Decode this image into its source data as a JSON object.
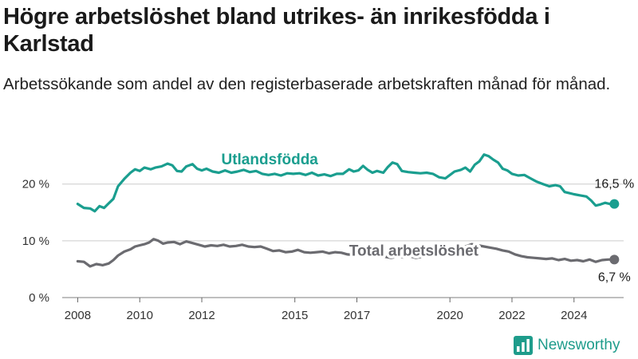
{
  "title": "Högre arbetslöshet bland utrikes- än inrikesfödda i Karlstad",
  "subtitle": "Arbetssökande som andel av den registerbaserade arbetskraften månad för månad.",
  "brand": {
    "name": "Newsworthy",
    "icon": "bar-chart-logo-icon"
  },
  "colors": {
    "foreign": "#1a9e8f",
    "total": "#6b6b70",
    "grid": "#cccccc",
    "text": "#1a1a1a"
  },
  "chart_data": {
    "type": "line",
    "xlabel": "",
    "ylabel": "",
    "xlim": [
      2007.5,
      2025.6
    ],
    "ylim": [
      0,
      26
    ],
    "x_ticks": [
      2008,
      2010,
      2012,
      2015,
      2017,
      2020,
      2022,
      2024
    ],
    "y_ticks": [
      {
        "value": 0,
        "label": "0 %"
      },
      {
        "value": 10,
        "label": "10 %"
      },
      {
        "value": 20,
        "label": "20 %"
      }
    ],
    "grid": "horizontal",
    "series": [
      {
        "name": "Utlandsfödda",
        "end_label": "16,5 %",
        "points": [
          [
            2008.0,
            16.5
          ],
          [
            2008.2,
            15.8
          ],
          [
            2008.4,
            15.7
          ],
          [
            2008.55,
            15.2
          ],
          [
            2008.7,
            16.1
          ],
          [
            2008.85,
            15.8
          ],
          [
            2009.0,
            16.6
          ],
          [
            2009.15,
            17.4
          ],
          [
            2009.3,
            19.6
          ],
          [
            2009.5,
            20.9
          ],
          [
            2009.7,
            22.0
          ],
          [
            2009.85,
            22.6
          ],
          [
            2010.0,
            22.3
          ],
          [
            2010.15,
            22.9
          ],
          [
            2010.35,
            22.6
          ],
          [
            2010.5,
            22.9
          ],
          [
            2010.7,
            23.1
          ],
          [
            2010.9,
            23.6
          ],
          [
            2011.05,
            23.3
          ],
          [
            2011.2,
            22.3
          ],
          [
            2011.35,
            22.2
          ],
          [
            2011.5,
            23.1
          ],
          [
            2011.7,
            23.5
          ],
          [
            2011.85,
            22.7
          ],
          [
            2012.0,
            22.4
          ],
          [
            2012.15,
            22.7
          ],
          [
            2012.35,
            22.2
          ],
          [
            2012.55,
            22.0
          ],
          [
            2012.75,
            22.4
          ],
          [
            2012.95,
            22.0
          ],
          [
            2013.15,
            22.2
          ],
          [
            2013.35,
            22.5
          ],
          [
            2013.55,
            22.1
          ],
          [
            2013.75,
            22.3
          ],
          [
            2013.95,
            21.8
          ],
          [
            2014.15,
            21.6
          ],
          [
            2014.35,
            21.8
          ],
          [
            2014.55,
            21.5
          ],
          [
            2014.75,
            21.9
          ],
          [
            2014.95,
            21.8
          ],
          [
            2015.15,
            21.9
          ],
          [
            2015.35,
            21.6
          ],
          [
            2015.55,
            22.0
          ],
          [
            2015.75,
            21.5
          ],
          [
            2015.95,
            21.7
          ],
          [
            2016.15,
            21.4
          ],
          [
            2016.35,
            21.8
          ],
          [
            2016.55,
            21.8
          ],
          [
            2016.75,
            22.6
          ],
          [
            2016.9,
            22.2
          ],
          [
            2017.05,
            22.4
          ],
          [
            2017.2,
            23.2
          ],
          [
            2017.35,
            22.5
          ],
          [
            2017.5,
            22.0
          ],
          [
            2017.65,
            22.3
          ],
          [
            2017.85,
            22.0
          ],
          [
            2018.0,
            23.0
          ],
          [
            2018.15,
            23.8
          ],
          [
            2018.3,
            23.5
          ],
          [
            2018.45,
            22.3
          ],
          [
            2018.65,
            22.1
          ],
          [
            2018.85,
            22.0
          ],
          [
            2019.05,
            21.9
          ],
          [
            2019.25,
            22.0
          ],
          [
            2019.45,
            21.8
          ],
          [
            2019.65,
            21.2
          ],
          [
            2019.85,
            21.0
          ],
          [
            2020.0,
            21.6
          ],
          [
            2020.15,
            22.2
          ],
          [
            2020.35,
            22.5
          ],
          [
            2020.5,
            22.9
          ],
          [
            2020.65,
            22.2
          ],
          [
            2020.8,
            23.4
          ],
          [
            2020.95,
            24.0
          ],
          [
            2021.1,
            25.2
          ],
          [
            2021.25,
            24.9
          ],
          [
            2021.4,
            24.3
          ],
          [
            2021.55,
            23.8
          ],
          [
            2021.7,
            22.7
          ],
          [
            2021.85,
            22.4
          ],
          [
            2022.0,
            21.8
          ],
          [
            2022.2,
            21.5
          ],
          [
            2022.4,
            21.6
          ],
          [
            2022.6,
            21.0
          ],
          [
            2022.8,
            20.4
          ],
          [
            2023.0,
            20.0
          ],
          [
            2023.2,
            19.6
          ],
          [
            2023.4,
            19.8
          ],
          [
            2023.55,
            19.6
          ],
          [
            2023.7,
            18.6
          ],
          [
            2023.85,
            18.4
          ],
          [
            2024.0,
            18.2
          ],
          [
            2024.2,
            18.0
          ],
          [
            2024.4,
            17.8
          ],
          [
            2024.55,
            17.1
          ],
          [
            2024.7,
            16.2
          ],
          [
            2024.85,
            16.4
          ],
          [
            2025.0,
            16.7
          ],
          [
            2025.15,
            16.5
          ],
          [
            2025.3,
            16.5
          ]
        ]
      },
      {
        "name": "Total arbetslöshet",
        "end_label": "6,7 %",
        "points": [
          [
            2008.0,
            6.4
          ],
          [
            2008.2,
            6.3
          ],
          [
            2008.4,
            5.5
          ],
          [
            2008.6,
            5.9
          ],
          [
            2008.8,
            5.7
          ],
          [
            2009.0,
            6.0
          ],
          [
            2009.15,
            6.6
          ],
          [
            2009.3,
            7.4
          ],
          [
            2009.5,
            8.1
          ],
          [
            2009.7,
            8.5
          ],
          [
            2009.85,
            9.0
          ],
          [
            2010.0,
            9.2
          ],
          [
            2010.15,
            9.4
          ],
          [
            2010.3,
            9.7
          ],
          [
            2010.45,
            10.3
          ],
          [
            2010.6,
            10.0
          ],
          [
            2010.75,
            9.5
          ],
          [
            2010.9,
            9.7
          ],
          [
            2011.1,
            9.8
          ],
          [
            2011.3,
            9.4
          ],
          [
            2011.5,
            9.9
          ],
          [
            2011.7,
            9.6
          ],
          [
            2011.9,
            9.3
          ],
          [
            2012.1,
            9.0
          ],
          [
            2012.3,
            9.2
          ],
          [
            2012.5,
            9.1
          ],
          [
            2012.7,
            9.3
          ],
          [
            2012.9,
            9.0
          ],
          [
            2013.1,
            9.1
          ],
          [
            2013.3,
            9.3
          ],
          [
            2013.5,
            9.0
          ],
          [
            2013.7,
            8.9
          ],
          [
            2013.9,
            9.0
          ],
          [
            2014.1,
            8.6
          ],
          [
            2014.3,
            8.2
          ],
          [
            2014.5,
            8.3
          ],
          [
            2014.7,
            8.0
          ],
          [
            2014.9,
            8.1
          ],
          [
            2015.1,
            8.4
          ],
          [
            2015.3,
            8.0
          ],
          [
            2015.5,
            7.9
          ],
          [
            2015.7,
            8.0
          ],
          [
            2015.9,
            8.1
          ],
          [
            2016.1,
            7.8
          ],
          [
            2016.3,
            8.0
          ],
          [
            2016.5,
            7.9
          ],
          [
            2016.7,
            7.6
          ],
          [
            2016.9,
            7.5
          ],
          [
            2017.1,
            7.4
          ],
          [
            2017.3,
            7.6
          ],
          [
            2017.5,
            7.3
          ],
          [
            2017.7,
            7.4
          ],
          [
            2017.9,
            7.2
          ],
          [
            2018.1,
            7.0
          ],
          [
            2018.3,
            7.2
          ],
          [
            2018.5,
            7.1
          ],
          [
            2018.7,
            7.3
          ],
          [
            2018.9,
            7.0
          ],
          [
            2019.1,
            7.2
          ],
          [
            2019.3,
            7.5
          ],
          [
            2019.5,
            7.3
          ],
          [
            2019.7,
            7.6
          ],
          [
            2019.9,
            8.0
          ],
          [
            2020.1,
            8.3
          ],
          [
            2020.3,
            8.7
          ],
          [
            2020.5,
            9.0
          ],
          [
            2020.7,
            9.4
          ],
          [
            2020.9,
            9.2
          ],
          [
            2021.1,
            9.0
          ],
          [
            2021.3,
            8.8
          ],
          [
            2021.5,
            8.6
          ],
          [
            2021.7,
            8.3
          ],
          [
            2021.9,
            8.1
          ],
          [
            2022.1,
            7.6
          ],
          [
            2022.3,
            7.3
          ],
          [
            2022.5,
            7.1
          ],
          [
            2022.7,
            7.0
          ],
          [
            2022.9,
            6.9
          ],
          [
            2023.1,
            6.8
          ],
          [
            2023.3,
            6.9
          ],
          [
            2023.5,
            6.6
          ],
          [
            2023.7,
            6.8
          ],
          [
            2023.9,
            6.5
          ],
          [
            2024.1,
            6.6
          ],
          [
            2024.3,
            6.4
          ],
          [
            2024.5,
            6.7
          ],
          [
            2024.7,
            6.3
          ],
          [
            2024.9,
            6.6
          ],
          [
            2025.1,
            6.7
          ],
          [
            2025.3,
            6.7
          ]
        ]
      }
    ]
  }
}
